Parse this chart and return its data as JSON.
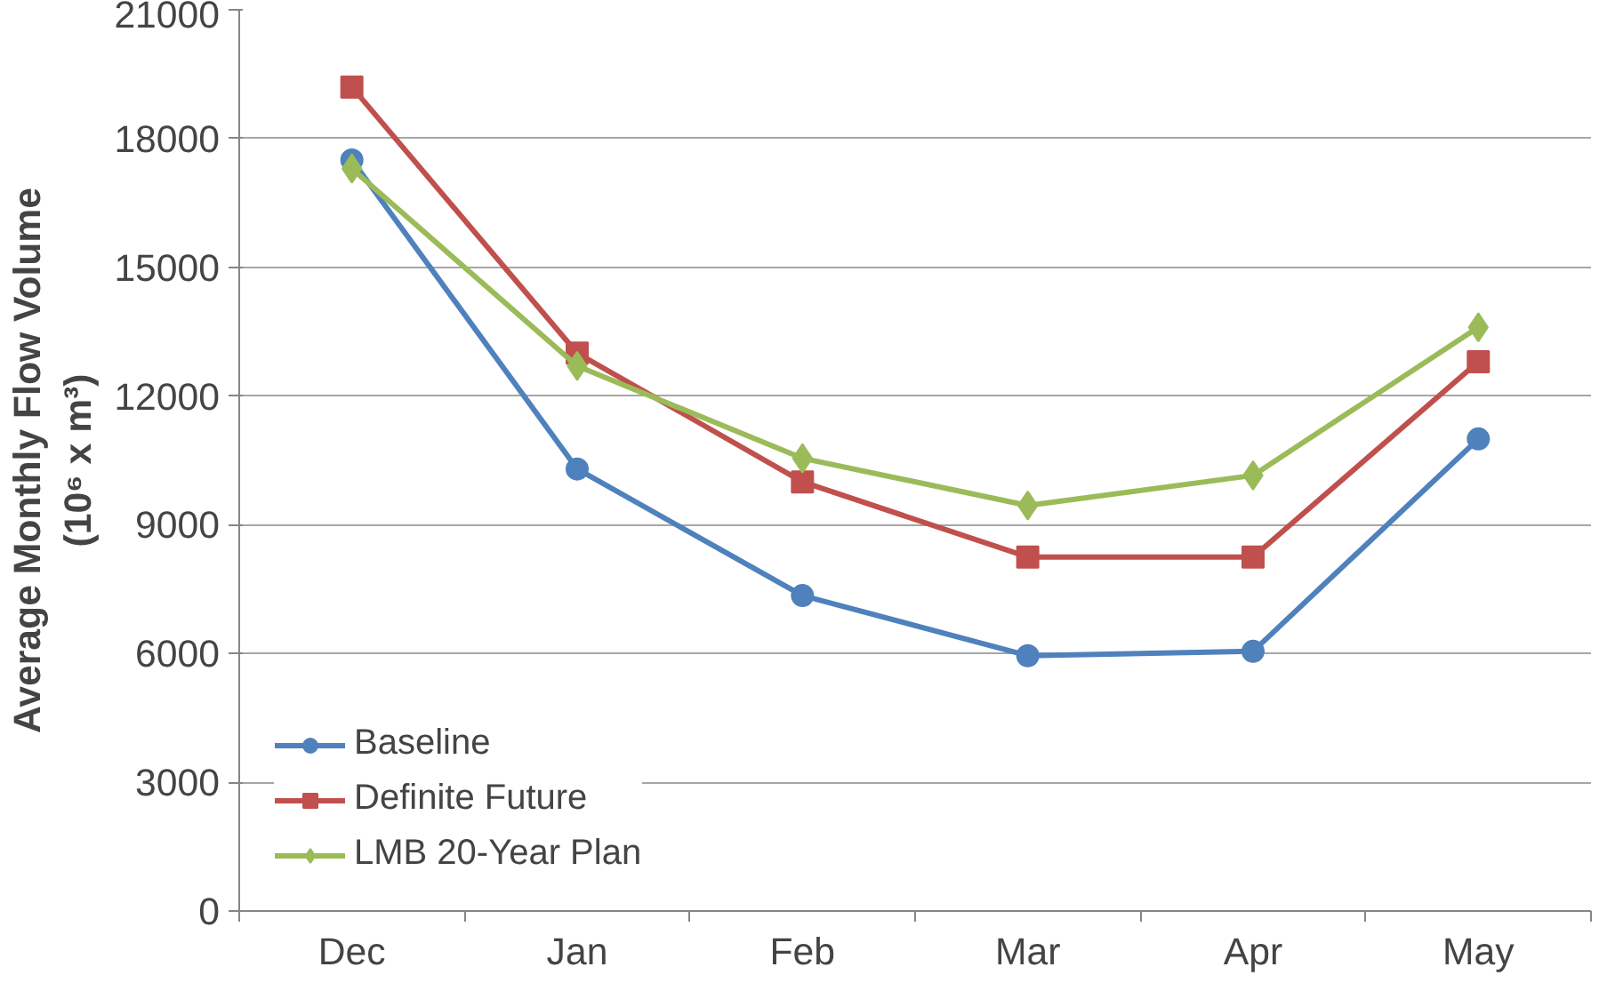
{
  "chart_data": {
    "type": "line",
    "ylabel": "Average Monthly Flow Volume\n(10⁶ x m³)",
    "categories": [
      "Dec",
      "Jan",
      "Feb",
      "Mar",
      "Apr",
      "May"
    ],
    "series": [
      {
        "name": "Baseline",
        "color": "#4f81bd",
        "marker": "circle",
        "values": [
          17500,
          10300,
          7350,
          5950,
          6050,
          11000
        ]
      },
      {
        "name": "Definite Future",
        "color": "#c0504d",
        "marker": "square",
        "values": [
          19200,
          13000,
          10000,
          8250,
          8250,
          12800
        ]
      },
      {
        "name": "LMB 20-Year Plan",
        "color": "#9bbb59",
        "marker": "diamond",
        "values": [
          17300,
          12700,
          10550,
          9450,
          10150,
          13600
        ]
      }
    ],
    "ylim": [
      0,
      21000
    ],
    "yticks": [
      0,
      3000,
      6000,
      9000,
      12000,
      15000,
      18000,
      21000
    ],
    "grid": "y",
    "legend": "bottom left",
    "line_style": "solid"
  }
}
